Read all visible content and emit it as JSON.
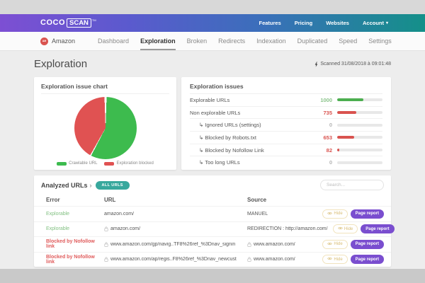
{
  "colors": {
    "accent_purple": "#7a4ecf",
    "teal_badge": "#38a89d",
    "green": "#4cae50",
    "red": "#d9534f",
    "gradient_left": "#7d4fd3",
    "gradient_right": "#149089"
  },
  "icons": {
    "caret": "▾",
    "chevron": "›"
  },
  "topbar": {
    "logo_coco": "COCO",
    "logo_scan": "SCAN",
    "logo_tm": "TM",
    "links": [
      "Features",
      "Pricing",
      "Websites",
      "Account"
    ]
  },
  "nav": {
    "site_label": "Amazon",
    "site_initials": "AM",
    "tabs": [
      {
        "label": "Dashboard",
        "active": false
      },
      {
        "label": "Exploration",
        "active": true
      },
      {
        "label": "Broken",
        "active": false
      },
      {
        "label": "Redirects",
        "active": false
      },
      {
        "label": "Indexation",
        "active": false
      },
      {
        "label": "Duplicated",
        "active": false
      },
      {
        "label": "Speed",
        "active": false
      },
      {
        "label": "Settings",
        "active": false
      }
    ]
  },
  "page": {
    "title": "Exploration",
    "scanned": "Scanned 31/08/2018 à 09:01:48"
  },
  "chart_card": {
    "title": "Exploration issue chart"
  },
  "chart_data": {
    "type": "pie",
    "title": "Exploration issue chart",
    "labels": [
      "Crawlable URL",
      "Exploration blocked"
    ],
    "values": [
      1000,
      735
    ],
    "colors": [
      "#3dbb4e",
      "#e05252"
    ],
    "legend_position": "bottom"
  },
  "issues_card": {
    "title": "Exploration issues",
    "rows": [
      {
        "label": "Explorable URLs",
        "value": "1000",
        "pct": 58,
        "bar_color": "#4cae50",
        "value_color": "#8bc48b",
        "indent": false
      },
      {
        "label": "Non explorable URLs",
        "value": "735",
        "pct": 42,
        "bar_color": "#d9534f",
        "value_color": "#d9534f",
        "indent": false
      },
      {
        "label": "Ignored URLs (settings)",
        "value": "0",
        "pct": 0,
        "bar_color": "#d9534f",
        "value_color": "#b5b5b5",
        "indent": true
      },
      {
        "label": "Blocked by Robots.txt",
        "value": "653",
        "pct": 38,
        "bar_color": "#d9534f",
        "value_color": "#d9534f",
        "indent": true
      },
      {
        "label": "Blocked by Nofollow Link",
        "value": "82",
        "pct": 5,
        "bar_color": "#d9534f",
        "value_color": "#d9534f",
        "indent": true
      },
      {
        "label": "Too long URLs",
        "value": "0",
        "pct": 0,
        "bar_color": "#d9534f",
        "value_color": "#b5b5b5",
        "indent": true
      }
    ]
  },
  "analyzed": {
    "title": "Analyzed URLs",
    "badge": "ALL URLS",
    "search_placeholder": "Search...",
    "columns": [
      "Error",
      "URL",
      "Source"
    ],
    "hide_label": "Hide",
    "report_label": "Page report",
    "rows": [
      {
        "error": "Explorable",
        "status": "ok",
        "url": "amazon.com/",
        "url_lock": false,
        "source": "MANUEL",
        "source_lock": false
      },
      {
        "error": "Explorable",
        "status": "ok",
        "url": "amazon.com/",
        "url_lock": true,
        "source": "REDIRECTION : http://amazon.com/",
        "source_lock": false
      },
      {
        "error": "Blocked by Nofollow link",
        "status": "blocked",
        "url": "www.amazon.com/gp/navig..TF8%26ref_%3Dnav_signin",
        "url_lock": true,
        "source": "www.amazon.com/",
        "source_lock": true
      },
      {
        "error": "Blocked by Nofollow link",
        "status": "blocked",
        "url": "www.amazon.com/ap/regis..F8%26ref_%3Dnav_newcust",
        "url_lock": true,
        "source": "www.amazon.com/",
        "source_lock": true
      }
    ]
  }
}
